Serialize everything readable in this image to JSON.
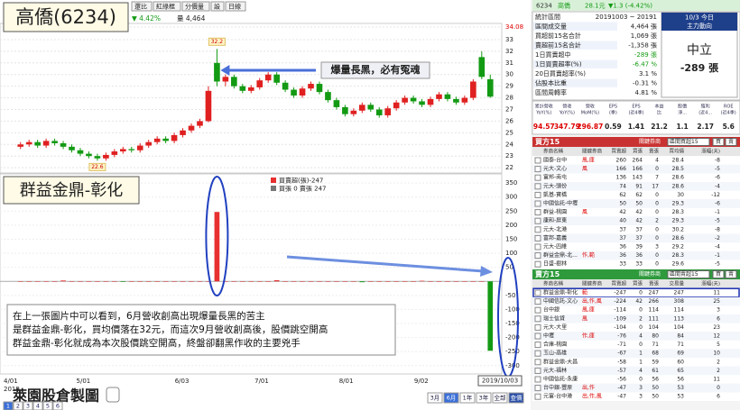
{
  "header": {
    "title": "高僑(6234)",
    "toolbar": [
      "還比",
      "紅綠框",
      "分價量",
      "設",
      "日線"
    ],
    "quote": "▼ 4.42%",
    "volume": "量 4,464"
  },
  "price_chart": {
    "ylim": [
      21.7,
      34.08
    ],
    "yticks": [
      34.08,
      33,
      32,
      31,
      30,
      29,
      28,
      27,
      26,
      25,
      24,
      23,
      22
    ],
    "high": 32.2,
    "low": 22.6,
    "annotation": "爆量長黑，必有冤魂",
    "candles": [
      [
        23.8,
        24.2,
        23.6,
        24.0
      ],
      [
        24.0,
        24.4,
        23.8,
        24.2
      ],
      [
        24.2,
        24.4,
        23.7,
        23.9
      ],
      [
        23.9,
        24.5,
        23.7,
        24.3
      ],
      [
        24.3,
        24.5,
        23.9,
        24.1
      ],
      [
        24.1,
        24.3,
        23.6,
        23.8
      ],
      [
        23.8,
        24.0,
        23.3,
        23.5
      ],
      [
        23.5,
        23.7,
        23.0,
        23.2
      ],
      [
        23.2,
        23.4,
        22.8,
        23.0
      ],
      [
        23.0,
        23.2,
        22.6,
        22.8
      ],
      [
        22.8,
        23.3,
        22.6,
        23.1
      ],
      [
        23.1,
        23.6,
        22.9,
        23.4
      ],
      [
        23.4,
        23.8,
        23.2,
        23.6
      ],
      [
        23.6,
        23.8,
        23.3,
        23.5
      ],
      [
        23.5,
        24.1,
        23.3,
        23.9
      ],
      [
        23.9,
        24.4,
        23.7,
        24.2
      ],
      [
        24.2,
        24.7,
        24.0,
        24.5
      ],
      [
        24.5,
        24.7,
        24.1,
        24.3
      ],
      [
        24.3,
        25.0,
        24.1,
        24.8
      ],
      [
        24.8,
        25.4,
        24.6,
        25.2
      ],
      [
        25.2,
        25.8,
        25.0,
        25.6
      ],
      [
        25.6,
        26.2,
        25.4,
        26.0
      ],
      [
        26.0,
        29.0,
        25.9,
        28.6
      ],
      [
        31.0,
        32.2,
        29.0,
        29.4
      ],
      [
        29.4,
        30.0,
        29.0,
        29.8
      ],
      [
        29.8,
        30.0,
        28.8,
        29.0
      ],
      [
        29.0,
        29.2,
        28.4,
        28.6
      ],
      [
        28.6,
        29.1,
        28.4,
        28.9
      ],
      [
        28.9,
        29.7,
        28.7,
        29.5
      ],
      [
        29.5,
        30.2,
        29.3,
        30.0
      ],
      [
        30.0,
        30.2,
        29.1,
        29.3
      ],
      [
        29.3,
        29.5,
        28.5,
        28.7
      ],
      [
        28.7,
        28.9,
        28.0,
        28.2
      ],
      [
        28.2,
        29.0,
        28.0,
        28.8
      ],
      [
        28.8,
        29.4,
        28.6,
        29.2
      ],
      [
        29.2,
        29.4,
        28.3,
        28.5
      ],
      [
        28.5,
        28.7,
        27.6,
        27.8
      ],
      [
        27.8,
        28.0,
        27.0,
        27.2
      ],
      [
        27.2,
        27.4,
        26.4,
        26.6
      ],
      [
        26.6,
        27.1,
        26.4,
        26.9
      ],
      [
        26.9,
        27.6,
        26.7,
        27.4
      ],
      [
        27.4,
        27.6,
        26.8,
        27.0
      ],
      [
        27.0,
        27.2,
        26.3,
        26.5
      ],
      [
        26.5,
        27.3,
        26.3,
        27.1
      ],
      [
        27.1,
        27.8,
        26.9,
        27.6
      ],
      [
        27.6,
        28.2,
        27.4,
        28.0
      ],
      [
        28.0,
        28.2,
        27.5,
        27.7
      ],
      [
        27.7,
        27.9,
        27.2,
        27.4
      ],
      [
        27.4,
        28.1,
        27.2,
        27.9
      ],
      [
        27.9,
        28.5,
        27.7,
        28.3
      ],
      [
        28.3,
        28.5,
        27.7,
        27.9
      ],
      [
        27.9,
        28.1,
        27.4,
        27.6
      ],
      [
        27.6,
        28.2,
        27.4,
        28.0
      ],
      [
        28.0,
        29.6,
        27.8,
        29.4
      ],
      [
        31.5,
        32.0,
        29.6,
        29.8
      ],
      [
        29.6,
        30.0,
        28.0,
        28.1
      ]
    ]
  },
  "broker_chart": {
    "title": "群益金鼎-彰化",
    "legend": [
      "買賣超(張)-247",
      "買張 0 賣張 247"
    ],
    "ylim": [
      -320,
      360
    ],
    "yticks": [
      350,
      300,
      250,
      200,
      150,
      100,
      50,
      -50,
      -100,
      -150,
      -200,
      -250,
      -300
    ],
    "values": [
      0,
      0,
      0,
      0,
      0,
      3,
      0,
      0,
      0,
      0,
      0,
      0,
      -2,
      0,
      0,
      0,
      0,
      0,
      0,
      0,
      0,
      0,
      0,
      247,
      0,
      0,
      0,
      0,
      0,
      0,
      4,
      0,
      0,
      0,
      0,
      0,
      0,
      0,
      0,
      0,
      -3,
      0,
      0,
      0,
      0,
      0,
      0,
      2,
      0,
      0,
      0,
      0,
      0,
      0,
      0,
      -247
    ],
    "x_labels": [
      "4/01",
      "5/01",
      "6/03",
      "7/01",
      "8/01",
      "9/02",
      "2019/10/03"
    ],
    "year": "2019"
  },
  "note": {
    "lines": [
      "在上一張圖片中可以看到，6月營收創高出現爆量長黑的苦主",
      "是群益金鼎-彰化，買均價落在32元，而這次9月營收創高後，股價跳空開高",
      "群益金鼎-彰化就成為本次股價跳空開高，終盤卻翻黑作收的主要兇手"
    ]
  },
  "footer": {
    "brand": "萊園股倉製圖",
    "pages": [
      "1",
      "2",
      "3",
      "4",
      "5",
      "6"
    ],
    "ranges": [
      "3月",
      "6月",
      "1年",
      "3年",
      "全部",
      "查價"
    ]
  },
  "side": {
    "quote": {
      "code": "6234",
      "name": "高僑",
      "price": "28.1元",
      "change": "▼1.3 (-4.42%)"
    },
    "stats": [
      [
        "統計區間",
        "20191003 ~ 20191"
      ],
      [
        "區間成交量",
        "4,464 張"
      ],
      [
        "買超前15名合計",
        "1,069 張"
      ],
      [
        "賣超前15名合計",
        "-1,358 張"
      ],
      [
        "1日買賣超中",
        "-289 張"
      ],
      [
        "1日買賣超率(%)",
        "-6.47 %"
      ],
      [
        "20日買賣超率(%)",
        "3.1 %"
      ],
      [
        "佔股本比重",
        "-0.31 %"
      ],
      [
        "區間周轉率",
        "4.81 %"
      ]
    ],
    "today": {
      "date": "10/3 今日",
      "label": "主力動向",
      "status": "中立",
      "net": "-289 張"
    },
    "ratios": {
      "headers": [
        [
          "累計營收",
          "YoY(%)"
        ],
        [
          "營收",
          "YoY(%)"
        ],
        [
          "營收",
          "MoM(%)"
        ],
        [
          "EPS",
          "(季)"
        ],
        [
          "EPS",
          "(近4季)"
        ],
        [
          "本益",
          "比"
        ],
        [
          "股價",
          "淨..."
        ],
        [
          "殖利",
          "(近4..."
        ],
        [
          "ROE",
          "(近4季)"
        ]
      ],
      "values": [
        94.57,
        347.79,
        296.87,
        0.59,
        1.41,
        21.2,
        1.1,
        2.17,
        5.6
      ]
    },
    "buy": {
      "title": "買方15",
      "key": "關鍵券商",
      "select": "區間買超15",
      "buttons": [
        "買",
        "賣"
      ],
      "headers": [
        "券商名稱",
        "關鍵券商",
        "買賣超",
        "買張",
        "賣張",
        "買均價",
        "漲幅(天)"
      ],
      "rows": [
        [
          "國泰-台中",
          "風,庫",
          260,
          264,
          4,
          28.4,
          -8
        ],
        [
          "元大-文心",
          "風",
          166,
          166,
          0,
          28.5,
          -5
        ],
        [
          "富邦-南屯",
          "",
          136,
          143,
          7,
          28.6,
          -6
        ],
        [
          "元大-頭份",
          "",
          74,
          91,
          17,
          28.6,
          -4
        ],
        [
          "凱基-寶橋",
          "",
          62,
          62,
          0,
          30,
          -12
        ],
        [
          "中國信託-中壢",
          "",
          50,
          50,
          0,
          29.3,
          -6
        ],
        [
          "群益-桃園",
          "風",
          42,
          42,
          0,
          28.3,
          -1
        ],
        [
          "康和-屏東",
          "",
          40,
          42,
          2,
          29.3,
          -5
        ],
        [
          "元大-北港",
          "",
          37,
          37,
          0,
          30.2,
          -8
        ],
        [
          "富邦-嘉義",
          "",
          37,
          37,
          0,
          28.6,
          -2
        ],
        [
          "元大-四維",
          "",
          36,
          39,
          3,
          29.2,
          -4
        ],
        [
          "群益金鼎-北...",
          "作,範",
          36,
          36,
          0,
          28.3,
          -1
        ],
        [
          "日盛-樹林",
          "",
          33,
          33,
          0,
          29.6,
          -5
        ]
      ]
    },
    "sell": {
      "title": "賣方15",
      "key": "關鍵券商",
      "select": "區間賣超15",
      "buttons": [
        "買",
        "賣"
      ],
      "headers": [
        "券商名稱",
        "關鍵券商",
        "買賣超",
        "買張",
        "賣張",
        "交易量",
        "漲幅(天)"
      ],
      "rows": [
        [
          "群益金鼎-彰化",
          "範",
          -247,
          0,
          247,
          247,
          11
        ],
        [
          "中國信託-文心",
          "出,作,風",
          -224,
          42,
          266,
          308,
          25
        ],
        [
          "台中銀",
          "風,庫",
          -114,
          0,
          114,
          114,
          3
        ],
        [
          "瑞士信貸",
          "風",
          -109,
          2,
          111,
          113,
          6
        ],
        [
          "元大-大里",
          "",
          -104,
          0,
          104,
          104,
          23
        ],
        [
          "中壢",
          "作,庫",
          -76,
          4,
          80,
          84,
          12
        ],
        [
          "合庫-桃園",
          "",
          -71,
          0,
          71,
          71,
          5
        ],
        [
          "玉山-高雄",
          "",
          -67,
          1,
          68,
          69,
          10
        ],
        [
          "群益金鼎-大昌",
          "",
          -58,
          1,
          59,
          60,
          2
        ],
        [
          "元大-福林",
          "",
          -57,
          4,
          61,
          65,
          2
        ],
        [
          "中國信託-永康",
          "",
          -56,
          0,
          56,
          56,
          11
        ],
        [
          "台中銀-豐原",
          "出,作",
          -47,
          3,
          50,
          53,
          0
        ],
        [
          "元富-台中港",
          "出,作,風",
          -47,
          3,
          50,
          53,
          6
        ]
      ]
    }
  }
}
